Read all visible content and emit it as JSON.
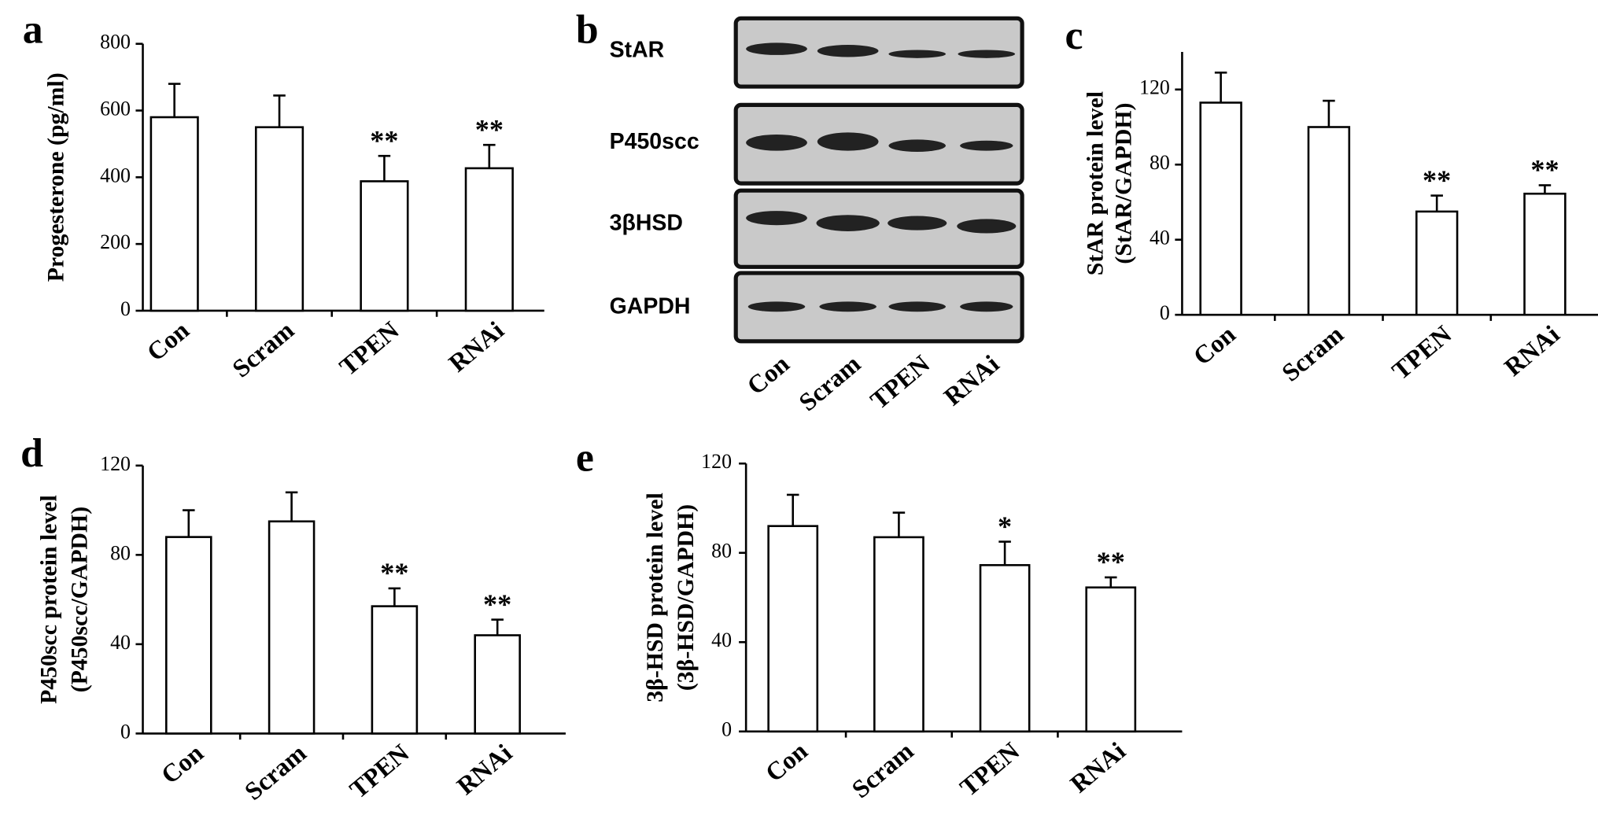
{
  "chart_data": [
    {
      "type": "bar",
      "panel": "a",
      "ylabel": [
        "Progesterone (pg/ml)"
      ],
      "categories": [
        "Con",
        "Scram",
        "TPEN",
        "RNAi"
      ],
      "values": [
        580,
        550,
        388,
        427
      ],
      "errors": [
        100,
        95,
        76,
        70
      ],
      "annotations": [
        null,
        null,
        "**",
        "**"
      ],
      "color": "#ffffff",
      "ylim": [
        0,
        800
      ],
      "yticks": [
        0,
        200,
        400,
        600,
        800
      ]
    },
    {
      "type": "blot",
      "panel": "b",
      "rows": [
        "StAR",
        "P450scc",
        "3βHSD",
        "GAPDH"
      ],
      "categories": [
        "Con",
        "Scram",
        "TPEN",
        "RNAi"
      ]
    },
    {
      "type": "bar",
      "panel": "c",
      "ylabel": [
        "StAR protein level",
        "(StAR/GAPDH)"
      ],
      "categories": [
        "Con",
        "Scram",
        "TPEN",
        "RNAi"
      ],
      "values": [
        113,
        100,
        55,
        64.5
      ],
      "errors": [
        16,
        14,
        8.5,
        4.5
      ],
      "annotations": [
        null,
        null,
        "**",
        "**"
      ],
      "color": "#ffffff",
      "ylim": [
        0,
        140
      ],
      "yticks": [
        0,
        40,
        80,
        120
      ]
    },
    {
      "type": "bar",
      "panel": "d",
      "ylabel": [
        "P450scc protein level",
        "(P450scc/GAPDH)"
      ],
      "categories": [
        "Con",
        "Scram",
        "TPEN",
        "RNAi"
      ],
      "values": [
        88,
        95,
        57,
        44
      ],
      "errors": [
        12,
        13,
        8,
        7
      ],
      "annotations": [
        null,
        null,
        "**",
        "**"
      ],
      "color": "#ffffff",
      "ylim": [
        0,
        120
      ],
      "yticks": [
        0,
        40,
        80,
        120
      ]
    },
    {
      "type": "bar",
      "panel": "e",
      "ylabel": [
        "3β-HSD protein level",
        "(3β-HSD/GAPDH)"
      ],
      "categories": [
        "Con",
        "Scram",
        "TPEN",
        "RNAi"
      ],
      "values": [
        92,
        87,
        74.5,
        64.5
      ],
      "errors": [
        14,
        11,
        10.5,
        4.5
      ],
      "annotations": [
        null,
        null,
        "*",
        "**"
      ],
      "color": "#ffffff",
      "ylim": [
        0,
        120
      ],
      "yticks": [
        0,
        40,
        80,
        120
      ]
    }
  ]
}
